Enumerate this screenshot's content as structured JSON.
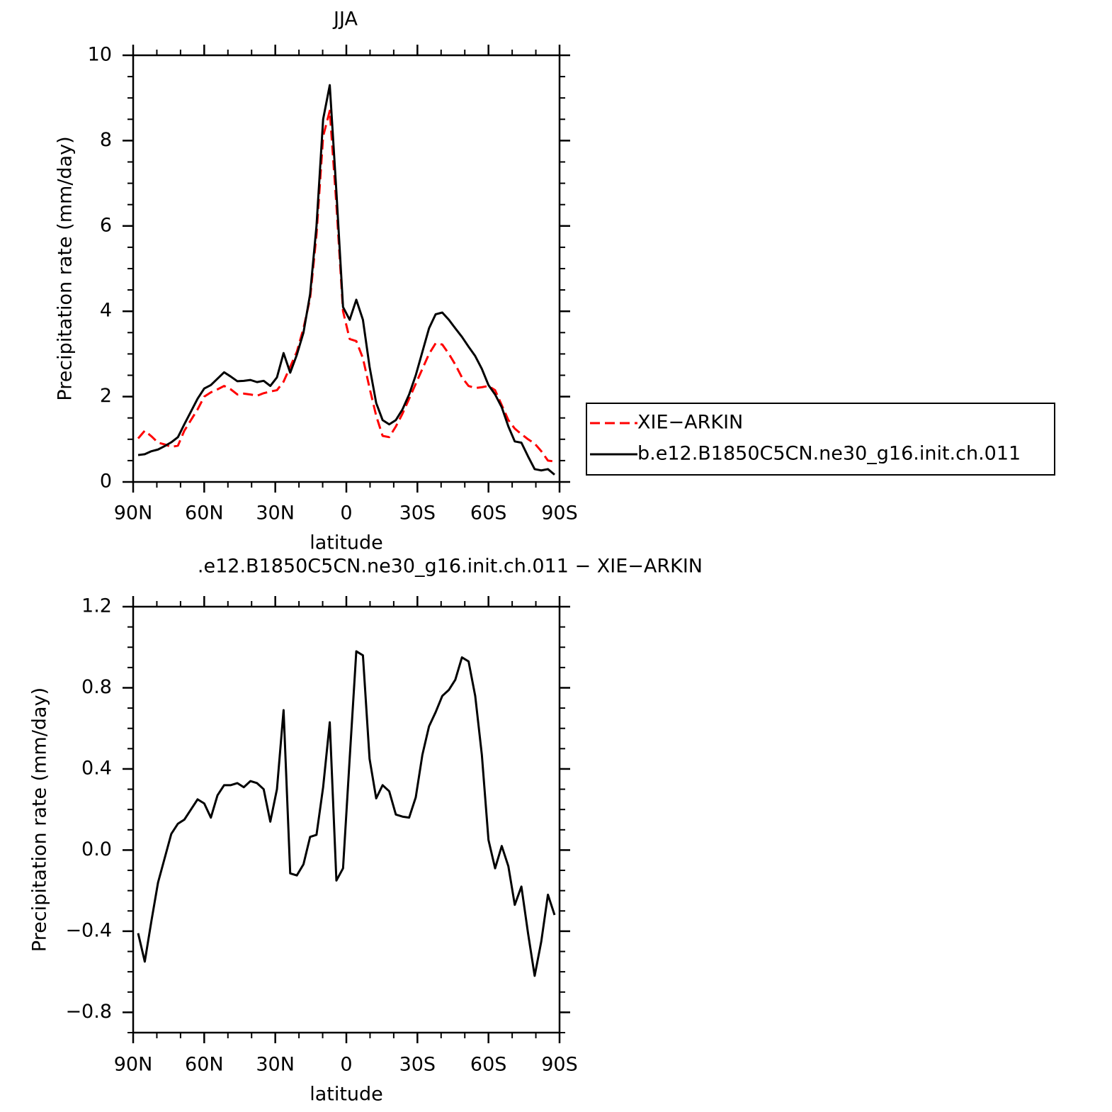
{
  "chart_data": [
    {
      "type": "line",
      "title": "JJA",
      "xlabel": "latitude",
      "ylabel": "Precipitation rate (mm/day)",
      "x": [
        87.9,
        85.1,
        82.3,
        79.5,
        76.7,
        73.9,
        71.1,
        68.4,
        65.6,
        62.8,
        60.0,
        57.2,
        54.4,
        51.6,
        48.8,
        46.0,
        43.3,
        40.5,
        37.7,
        34.9,
        32.1,
        29.3,
        26.5,
        23.7,
        20.9,
        18.1,
        15.3,
        12.6,
        9.8,
        7.0,
        4.2,
        1.4,
        -1.4,
        -4.2,
        -7.0,
        -9.8,
        -12.6,
        -15.3,
        -18.1,
        -20.9,
        -23.7,
        -26.5,
        -29.3,
        -32.1,
        -34.9,
        -37.7,
        -40.5,
        -43.3,
        -46.0,
        -48.8,
        -51.6,
        -54.4,
        -57.2,
        -60.0,
        -62.8,
        -65.6,
        -68.4,
        -71.1,
        -73.9,
        -76.7,
        -79.5,
        -82.3,
        -85.1,
        -87.9
      ],
      "series": [
        {
          "name": "XIE−ARKIN",
          "color": "#ff0000",
          "line_style": "dashed",
          "values": [
            1.02,
            1.2,
            1.07,
            0.92,
            0.88,
            0.82,
            0.85,
            1.2,
            1.45,
            1.7,
            2.0,
            2.1,
            2.17,
            2.25,
            2.17,
            2.05,
            2.07,
            2.05,
            2.02,
            2.08,
            2.12,
            2.15,
            2.35,
            2.7,
            3.05,
            3.6,
            4.3,
            5.8,
            8.1,
            8.7,
            6.5,
            4.0,
            3.35,
            3.3,
            2.9,
            2.2,
            1.55,
            1.08,
            1.05,
            1.3,
            1.6,
            1.95,
            2.3,
            2.65,
            3.0,
            3.25,
            3.22,
            3.0,
            2.75,
            2.45,
            2.25,
            2.2,
            2.22,
            2.25,
            2.15,
            1.8,
            1.45,
            1.25,
            1.12,
            1.0,
            0.9,
            0.72,
            0.5,
            0.48
          ]
        },
        {
          "name": "b.e12.B1850C5CN.ne30_g16.init.ch.011",
          "color": "#000000",
          "line_style": "solid",
          "values": [
            0.63,
            0.65,
            0.72,
            0.76,
            0.84,
            0.93,
            1.05,
            1.35,
            1.65,
            1.95,
            2.19,
            2.27,
            2.42,
            2.57,
            2.47,
            2.36,
            2.37,
            2.39,
            2.34,
            2.37,
            2.25,
            2.45,
            3.02,
            2.56,
            2.98,
            3.5,
            4.4,
            6.0,
            8.5,
            9.3,
            6.8,
            4.1,
            3.8,
            4.27,
            3.8,
            2.7,
            1.85,
            1.45,
            1.35,
            1.45,
            1.7,
            2.05,
            2.5,
            3.05,
            3.6,
            3.93,
            3.97,
            3.8,
            3.6,
            3.4,
            3.17,
            2.95,
            2.65,
            2.27,
            2.05,
            1.75,
            1.3,
            0.95,
            0.92,
            0.6,
            0.3,
            0.27,
            0.3,
            0.17
          ]
        }
      ],
      "xlim": [
        90,
        -90
      ],
      "xticks": [
        {
          "value": 90,
          "label": "90N"
        },
        {
          "value": 60,
          "label": "60N"
        },
        {
          "value": 30,
          "label": "30N"
        },
        0,
        {
          "value": -30,
          "label": "30S"
        },
        {
          "value": -60,
          "label": "60S"
        },
        {
          "value": -90,
          "label": "90S"
        }
      ],
      "ylim": [
        0,
        10
      ],
      "yticks": [
        0,
        2,
        4,
        6,
        8,
        10
      ],
      "minor_xstep": 10,
      "minor_ystep": 0.5,
      "legend": "right"
    },
    {
      "type": "line",
      "title": ".e12.B1850C5CN.ne30_g16.init.ch.011 − XIE−ARKIN",
      "xlabel": "latitude",
      "ylabel": "Precipitation rate (mm/day)",
      "x": [
        87.9,
        85.1,
        82.3,
        79.5,
        76.7,
        73.9,
        71.1,
        68.4,
        65.6,
        62.8,
        60.0,
        57.2,
        54.4,
        51.6,
        48.8,
        46.0,
        43.3,
        40.5,
        37.7,
        34.9,
        32.1,
        29.3,
        26.5,
        23.7,
        20.9,
        18.1,
        15.3,
        12.6,
        9.8,
        7.0,
        4.2,
        1.4,
        -1.4,
        -4.2,
        -7.0,
        -9.8,
        -12.6,
        -15.3,
        -18.1,
        -20.9,
        -23.7,
        -26.5,
        -29.3,
        -32.1,
        -34.9,
        -37.7,
        -40.5,
        -43.3,
        -46.0,
        -48.8,
        -51.6,
        -54.4,
        -57.2,
        -60.0,
        -62.8,
        -65.6,
        -68.4,
        -71.1,
        -73.9,
        -76.7,
        -79.5,
        -82.3,
        -85.1,
        -87.9
      ],
      "series": [
        {
          "color": "#000000",
          "line_style": "solid",
          "values": [
            -0.41,
            -0.55,
            -0.35,
            -0.16,
            -0.04,
            0.08,
            0.13,
            0.15,
            0.2,
            0.25,
            0.23,
            0.16,
            0.27,
            0.32,
            0.32,
            0.33,
            0.31,
            0.34,
            0.33,
            0.3,
            0.14,
            0.3,
            0.69,
            -0.115,
            -0.125,
            -0.07,
            0.065,
            0.075,
            0.31,
            0.63,
            -0.15,
            -0.09,
            0.45,
            0.98,
            0.96,
            0.45,
            0.255,
            0.32,
            0.29,
            0.175,
            0.165,
            0.16,
            0.26,
            0.47,
            0.61,
            0.68,
            0.76,
            0.79,
            0.84,
            0.95,
            0.93,
            0.76,
            0.47,
            0.05,
            -0.09,
            0.02,
            -0.08,
            -0.27,
            -0.18,
            -0.41,
            -0.62,
            -0.45,
            -0.22,
            -0.32
          ]
        }
      ],
      "xlim": [
        90,
        -90
      ],
      "xticks": [
        {
          "value": 90,
          "label": "90N"
        },
        {
          "value": 60,
          "label": "60N"
        },
        {
          "value": 30,
          "label": "30N"
        },
        0,
        {
          "value": -30,
          "label": "30S"
        },
        {
          "value": -60,
          "label": "60S"
        },
        {
          "value": -90,
          "label": "90S"
        }
      ],
      "ylim": [
        -0.9,
        1.2
      ],
      "yticks": [
        {
          "value": -0.8,
          "label": "−0.8"
        },
        {
          "value": -0.4,
          "label": "−0.4"
        },
        {
          "value": 0,
          "label": "0.0"
        },
        {
          "value": 0.4,
          "label": "0.4"
        },
        {
          "value": 0.8,
          "label": "0.8"
        },
        {
          "value": 1.2,
          "label": "1.2"
        }
      ],
      "minor_xstep": 10,
      "minor_ystep": 0.1
    }
  ]
}
